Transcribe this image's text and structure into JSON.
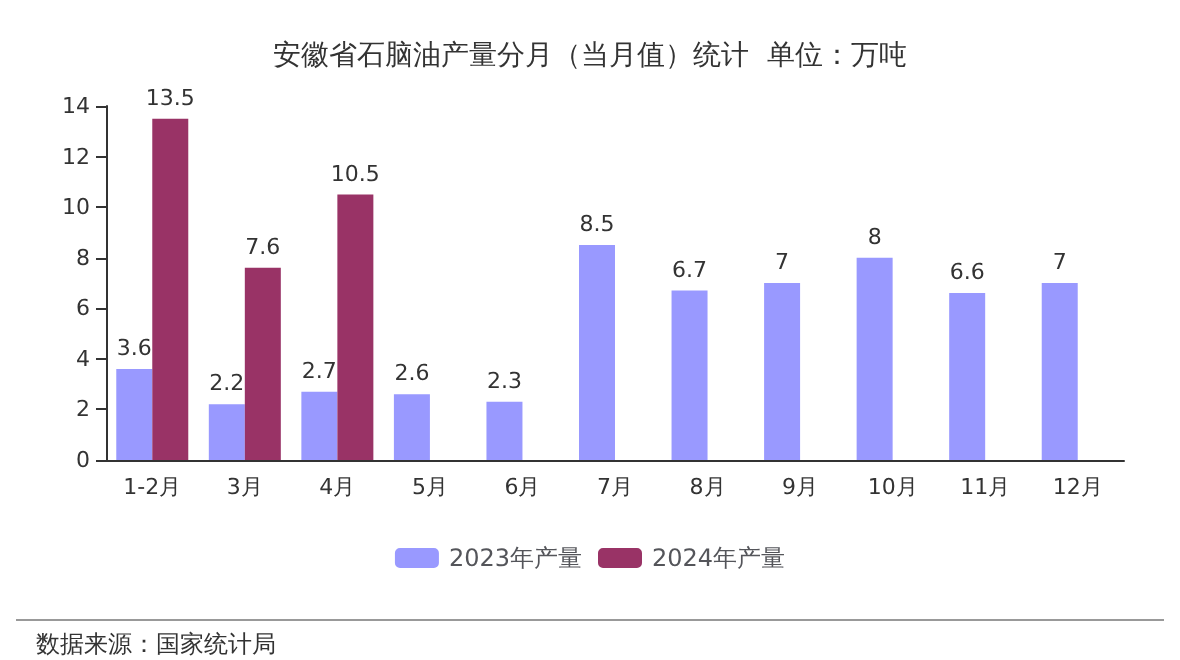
{
  "chart_data": {
    "type": "bar",
    "title": "安徽省石脑油产量分月（当月值）统计  单位：万吨",
    "categories": [
      "1-2月",
      "3月",
      "4月",
      "5月",
      "6月",
      "7月",
      "8月",
      "9月",
      "10月",
      "11月",
      "12月"
    ],
    "series": [
      {
        "name": "2023年产量",
        "color": "#9999ff",
        "values": [
          3.6,
          2.2,
          2.7,
          2.6,
          2.3,
          8.5,
          6.7,
          7,
          8,
          6.6,
          7
        ]
      },
      {
        "name": "2024年产量",
        "color": "#993366",
        "values": [
          13.5,
          7.6,
          10.5,
          null,
          null,
          null,
          null,
          null,
          null,
          null,
          null
        ]
      }
    ],
    "ylim": [
      0,
      14
    ],
    "yticks": [
      0,
      2,
      4,
      6,
      8,
      10,
      12,
      14
    ],
    "grid": false,
    "legend": "bottom",
    "data_labels": true,
    "annotations": [
      "数据来源：国家统计局"
    ]
  }
}
